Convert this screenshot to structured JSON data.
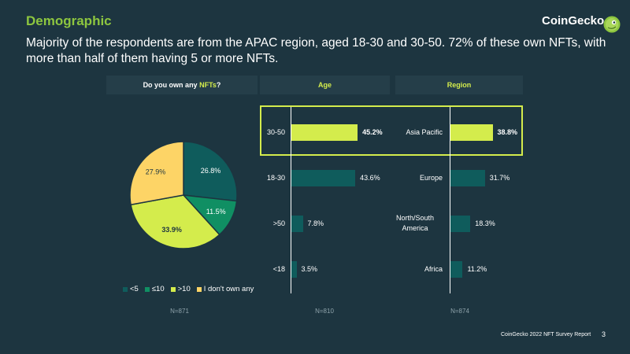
{
  "header": {
    "title": "Demographic",
    "brand": "CoinGecko",
    "subtitle": "Majority of the respondents are from the APAC region, aged 18-30 and 30-50. 72% of these own NFTs, with more than half of them having 5 or more NFTs."
  },
  "panels": {
    "nft_question_prefix": "Do you own any ",
    "nft_question_accent": "NFTs",
    "nft_question_suffix": "?",
    "age": "Age",
    "region": "Region"
  },
  "colors": {
    "background": "#1d3540",
    "green": "#8dc63f",
    "lime": "#d4ec4c",
    "teal_dark": "#0f5c5c",
    "teal_mid": "#108f63",
    "yellow": "#fdd466"
  },
  "chart_data": [
    {
      "type": "pie",
      "title": "Do you own any NFTs?",
      "slices": [
        {
          "label": "<5",
          "value": 26.8,
          "display": "26.8%",
          "color": "#0f5c5c"
        },
        {
          "label": "≤10",
          "value": 11.5,
          "display": "11.5%",
          "color": "#108f63"
        },
        {
          "label": ">10",
          "value": 33.9,
          "display": "33.9%",
          "color": "#d4ec4c"
        },
        {
          "label": "I don't own any",
          "value": 27.9,
          "display": "27.9%",
          "color": "#fdd466"
        }
      ],
      "legend_position": "bottom",
      "n": "N=871"
    },
    {
      "type": "bar",
      "orientation": "horizontal",
      "title": "Age",
      "categories": [
        "30-50",
        "18-30",
        ">50",
        "<18"
      ],
      "values": [
        45.2,
        43.6,
        7.8,
        3.5
      ],
      "labels": [
        "45.2%",
        "43.6%",
        "7.8%",
        "3.5%"
      ],
      "highlight": "30-50",
      "n": "N=810"
    },
    {
      "type": "bar",
      "orientation": "horizontal",
      "title": "Region",
      "categories": [
        "Asia Pacific",
        "Europe",
        "North/South America",
        "Africa"
      ],
      "values": [
        38.8,
        31.7,
        18.3,
        11.2
      ],
      "labels": [
        "38.8%",
        "31.7%",
        "18.3%",
        "11.2%"
      ],
      "highlight": "Asia Pacific",
      "n": "N=874"
    }
  ],
  "footer": {
    "report": "CoinGecko 2022 NFT Survey Report",
    "page": "3"
  }
}
